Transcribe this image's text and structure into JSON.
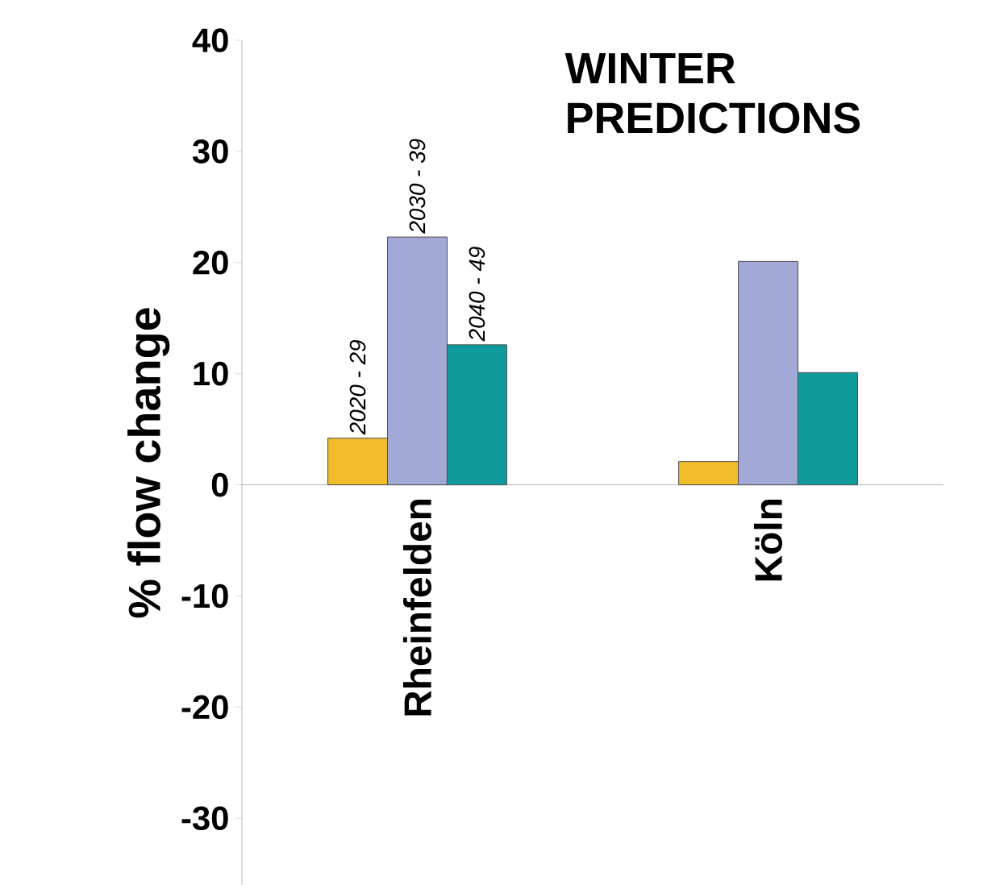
{
  "chart_data": {
    "type": "bar",
    "title": "WINTER PREDICTIONS",
    "ylabel": "% flow change",
    "categories": [
      "Rheinfelden",
      "Köln"
    ],
    "series": [
      {
        "name": "2020 - 29",
        "color": "#f0bc2c",
        "values": [
          4.2,
          2.1
        ]
      },
      {
        "name": "2030 - 39",
        "color": "#a3a9d6",
        "values": [
          22.3,
          20.1
        ]
      },
      {
        "name": "2040 - 49",
        "color": "#0f9b9b",
        "values": [
          12.6,
          10.1
        ]
      }
    ],
    "ylim": [
      -36,
      40
    ],
    "yticks": [
      -30,
      -20,
      -10,
      0,
      10,
      20,
      30,
      40
    ]
  }
}
